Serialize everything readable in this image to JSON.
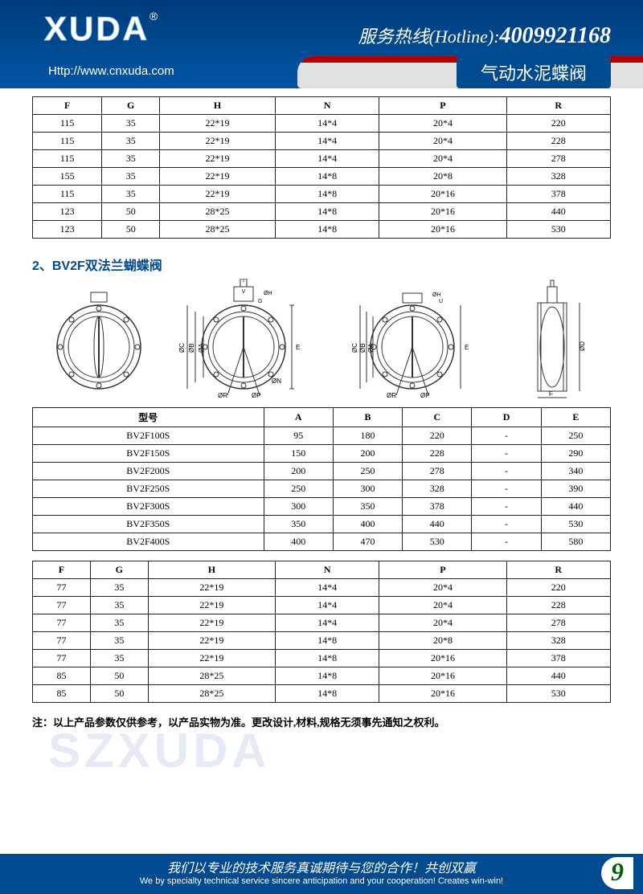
{
  "brand": {
    "name": "XUDA",
    "reg": "®",
    "url": "Http://www.cnxuda.com",
    "hotline_label": "服务热线(Hotline):",
    "hotline_number": "4009921168",
    "product_tag": "气动水泥蝶阀"
  },
  "table1": {
    "headers": [
      "F",
      "G",
      "H",
      "N",
      "P",
      "R"
    ],
    "rows": [
      [
        "115",
        "35",
        "22*19",
        "14*4",
        "20*4",
        "220"
      ],
      [
        "115",
        "35",
        "22*19",
        "14*4",
        "20*4",
        "228"
      ],
      [
        "115",
        "35",
        "22*19",
        "14*4",
        "20*4",
        "278"
      ],
      [
        "155",
        "35",
        "22*19",
        "14*8",
        "20*8",
        "328"
      ],
      [
        "115",
        "35",
        "22*19",
        "14*8",
        "20*16",
        "378"
      ],
      [
        "123",
        "50",
        "28*25",
        "14*8",
        "20*16",
        "440"
      ],
      [
        "123",
        "50",
        "28*25",
        "14*8",
        "20*16",
        "530"
      ]
    ]
  },
  "section2_title": "2、BV2F双法兰蝴蝶阀",
  "table2": {
    "headers": [
      "型号",
      "A",
      "B",
      "C",
      "D",
      "E"
    ],
    "rows": [
      [
        "BV2F100S",
        "95",
        "180",
        "220",
        "-",
        "250"
      ],
      [
        "BV2F150S",
        "150",
        "200",
        "228",
        "-",
        "290"
      ],
      [
        "BV2F200S",
        "200",
        "250",
        "278",
        "-",
        "340"
      ],
      [
        "BV2F250S",
        "250",
        "300",
        "328",
        "-",
        "390"
      ],
      [
        "BV2F300S",
        "300",
        "350",
        "378",
        "-",
        "440"
      ],
      [
        "BV2F350S",
        "350",
        "400",
        "440",
        "-",
        "530"
      ],
      [
        "BV2F400S",
        "400",
        "470",
        "530",
        "-",
        "580"
      ]
    ]
  },
  "table3": {
    "headers": [
      "F",
      "G",
      "H",
      "N",
      "P",
      "R"
    ],
    "rows": [
      [
        "77",
        "35",
        "22*19",
        "14*4",
        "20*4",
        "220"
      ],
      [
        "77",
        "35",
        "22*19",
        "14*4",
        "20*4",
        "228"
      ],
      [
        "77",
        "35",
        "22*19",
        "14*4",
        "20*4",
        "278"
      ],
      [
        "77",
        "35",
        "22*19",
        "14*8",
        "20*8",
        "328"
      ],
      [
        "77",
        "35",
        "22*19",
        "14*8",
        "20*16",
        "378"
      ],
      [
        "85",
        "50",
        "28*25",
        "14*8",
        "20*16",
        "440"
      ],
      [
        "85",
        "50",
        "28*25",
        "14*8",
        "20*16",
        "530"
      ]
    ]
  },
  "footnote": "注：以上产品参数仅供参考，以产品实物为准。更改设计,材料,规格无须事先通知之权利。",
  "footer": {
    "cn": "我们以专业的技术服务真诚期待与您的合作！共创双赢",
    "en": "We by specialty technical service sincere anticipation and your cooperation! Creates win-win!",
    "page": "9"
  },
  "watermark": "SZXUDA",
  "colors": {
    "primary": "#004a8f",
    "accent_green": "#006000",
    "border": "#222222"
  }
}
